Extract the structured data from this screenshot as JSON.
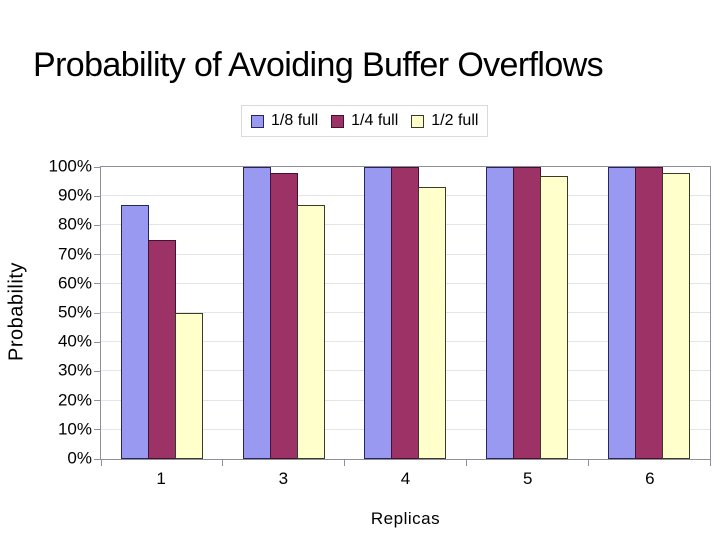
{
  "slide": {
    "title": "Probability of Avoiding Buffer Overflows"
  },
  "chart_data": {
    "type": "bar",
    "title": "",
    "categories": [
      "1",
      "3",
      "4",
      "5",
      "6"
    ],
    "series": [
      {
        "name": "1/8 full",
        "fill": "#9999F2",
        "border": "#26265C",
        "values": [
          87,
          100,
          100,
          100,
          100
        ]
      },
      {
        "name": "1/4 full",
        "fill": "#9C3266",
        "border": "#45122E",
        "values": [
          75,
          98,
          100,
          100,
          100
        ]
      },
      {
        "name": "1/2 full",
        "fill": "#FFFFCC",
        "border": "#3A3A28",
        "values": [
          50,
          87,
          93,
          97,
          98
        ]
      }
    ],
    "xlabel": "Replicas",
    "ylabel": "Probability",
    "ylim": [
      0,
      100
    ],
    "ytick_step": 10,
    "yticks": [
      "0%",
      "10%",
      "20%",
      "30%",
      "40%",
      "50%",
      "60%",
      "70%",
      "80%",
      "90%",
      "100%"
    ],
    "grid": true,
    "legend_position": "top"
  }
}
